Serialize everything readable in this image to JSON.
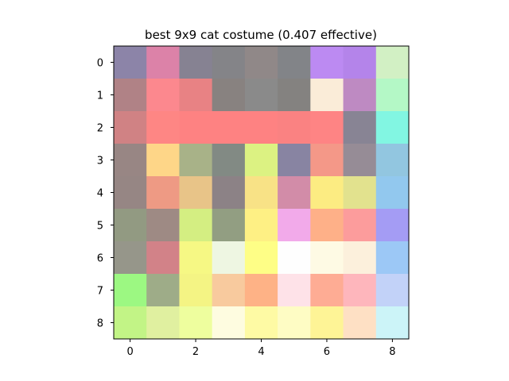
{
  "chart_data": {
    "type": "heatmap",
    "title": "best 9x9 cat costume (0.407 effective)",
    "xlabel": "",
    "ylabel": "",
    "x_ticks": [
      "0",
      "2",
      "4",
      "6",
      "8"
    ],
    "y_ticks": [
      "0",
      "1",
      "2",
      "3",
      "4",
      "5",
      "6",
      "7",
      "8"
    ],
    "grid": false,
    "rows": 9,
    "cols": 9,
    "cells": [
      [
        "#8c84a8",
        "#dc82a8",
        "#868292",
        "#848488",
        "#908888",
        "#828488",
        "#bc8af2",
        "#b484ea",
        "#d2f0c4"
      ],
      [
        "#b08286",
        "#fc888e",
        "#e88284",
        "#888280",
        "#8a8a8a",
        "#848280",
        "#faecd8",
        "#be8ac2",
        "#b4f8c6"
      ],
      [
        "#d08284",
        "#fe8684",
        "#fe8282",
        "#fe8282",
        "#fe8282",
        "#fa8282",
        "#fe8484",
        "#888494",
        "#82f6e2"
      ],
      [
        "#988684",
        "#fed688",
        "#a8b288",
        "#828a84",
        "#dcf282",
        "#8884a2",
        "#f49888",
        "#968c96",
        "#92c6e0"
      ],
      [
        "#968684",
        "#ee9a84",
        "#e8c488",
        "#8c8286",
        "#f8e286",
        "#d28ca8",
        "#fcec82",
        "#e2e28e",
        "#92c8ee"
      ],
      [
        "#929a82",
        "#9e8a84",
        "#d4ee82",
        "#929e82",
        "#fef084",
        "#f2aaea",
        "#feb088",
        "#fc9c9c",
        "#a49cf4"
      ],
      [
        "#96968a",
        "#d28288",
        "#f6f884",
        "#eef6e2",
        "#fefe86",
        "#fefefe",
        "#fefae4",
        "#fcf0dc",
        "#9cc8f6"
      ],
      [
        "#9cf882",
        "#9eac88",
        "#f4f484",
        "#f8ca9e",
        "#feb286",
        "#fee2e8",
        "#feac94",
        "#feb6bc",
        "#c2d2f8"
      ],
      [
        "#c2f486",
        "#e0f0a0",
        "#eefe9e",
        "#fefce0",
        "#fefaa4",
        "#fefcc4",
        "#fef496",
        "#fee0c4",
        "#ccf4f8"
      ]
    ]
  }
}
